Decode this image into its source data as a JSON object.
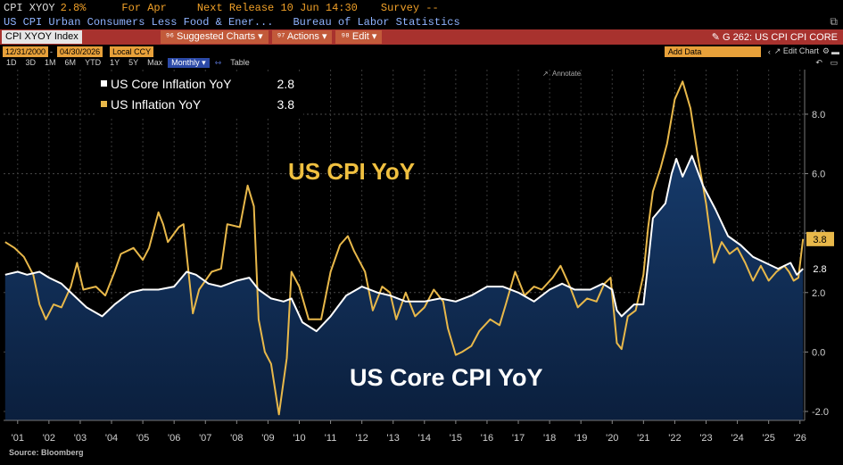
{
  "header": {
    "security": "CPI XYOY",
    "security_value": "2.8%",
    "for_label": "For Apr",
    "next_release": "Next Release 10 Jun 14:30",
    "survey": "Survey --",
    "description": "US CPI Urban Consumers Less Food & Ener...",
    "source_org": "Bureau of Labor Statistics"
  },
  "toolbar": {
    "command": "CPI XYOY Index",
    "menu_suggested": "Suggested Charts",
    "menu_actions": "Actions",
    "menu_edit": "Edit",
    "chart_id": "G 262: US CPI CPI CORE"
  },
  "controls": {
    "start_date": "12/31/2000",
    "end_date": "04/30/2026",
    "currency": "Local CCY",
    "periods": [
      "1D",
      "3D",
      "1M",
      "6M",
      "YTD",
      "1Y",
      "5Y",
      "Max"
    ],
    "frequency": "Monthly",
    "table": "Table",
    "add_data": "Add Data",
    "edit_chart": "Edit Chart",
    "annotate": "Annotate"
  },
  "source": "Source: Bloomberg",
  "chart_data": {
    "type": "area",
    "title": "US CPI YoY",
    "subtitle": "US Core CPI YoY",
    "x_domain": [
      2000.75,
      2026.35
    ],
    "ylim": [
      -2.3,
      9.5
    ],
    "y_ticks": [
      -2.0,
      0.0,
      2.0,
      4.0,
      6.0,
      8.0
    ],
    "x_ticks": [
      {
        "x": 2001.2,
        "label": "'01"
      },
      {
        "x": 2002.2,
        "label": "'02"
      },
      {
        "x": 2003.2,
        "label": "'03"
      },
      {
        "x": 2004.2,
        "label": "'04"
      },
      {
        "x": 2005.2,
        "label": "'05"
      },
      {
        "x": 2006.2,
        "label": "'06"
      },
      {
        "x": 2007.2,
        "label": "'07"
      },
      {
        "x": 2008.2,
        "label": "'08"
      },
      {
        "x": 2009.2,
        "label": "'09"
      },
      {
        "x": 2010.2,
        "label": "'10"
      },
      {
        "x": 2011.2,
        "label": "'11"
      },
      {
        "x": 2012.2,
        "label": "'12"
      },
      {
        "x": 2013.2,
        "label": "'13"
      },
      {
        "x": 2014.2,
        "label": "'14"
      },
      {
        "x": 2015.2,
        "label": "'15"
      },
      {
        "x": 2016.2,
        "label": "'16"
      },
      {
        "x": 2017.2,
        "label": "'17"
      },
      {
        "x": 2018.2,
        "label": "'18"
      },
      {
        "x": 2019.2,
        "label": "'19"
      },
      {
        "x": 2020.2,
        "label": "'20"
      },
      {
        "x": 2021.2,
        "label": "'21"
      },
      {
        "x": 2022.2,
        "label": "'22"
      },
      {
        "x": 2023.2,
        "label": "'23"
      },
      {
        "x": 2024.2,
        "label": "'24"
      },
      {
        "x": 2025.2,
        "label": "'25"
      },
      {
        "x": 2026.2,
        "label": "'26"
      }
    ],
    "grid": true,
    "legend_position": "top-left",
    "colors": {
      "core": "#ffffff",
      "headline": "#e8b84a",
      "fill": "#0e2748"
    },
    "series": [
      {
        "name": "US Core Inflation YoY",
        "last": "2.8",
        "points": [
          [
            2000.8,
            2.6
          ],
          [
            2001.2,
            2.7
          ],
          [
            2001.5,
            2.6
          ],
          [
            2001.9,
            2.7
          ],
          [
            2002.2,
            2.5
          ],
          [
            2002.6,
            2.3
          ],
          [
            2003.0,
            1.9
          ],
          [
            2003.4,
            1.5
          ],
          [
            2003.9,
            1.2
          ],
          [
            2004.3,
            1.6
          ],
          [
            2004.8,
            2.0
          ],
          [
            2005.2,
            2.1
          ],
          [
            2005.7,
            2.1
          ],
          [
            2006.2,
            2.2
          ],
          [
            2006.6,
            2.7
          ],
          [
            2006.9,
            2.6
          ],
          [
            2007.3,
            2.3
          ],
          [
            2007.7,
            2.2
          ],
          [
            2008.2,
            2.4
          ],
          [
            2008.6,
            2.5
          ],
          [
            2008.9,
            2.1
          ],
          [
            2009.3,
            1.8
          ],
          [
            2009.7,
            1.7
          ],
          [
            2009.95,
            1.8
          ],
          [
            2010.3,
            1.0
          ],
          [
            2010.75,
            0.7
          ],
          [
            2011.2,
            1.2
          ],
          [
            2011.7,
            1.9
          ],
          [
            2012.2,
            2.2
          ],
          [
            2012.7,
            2.0
          ],
          [
            2013.1,
            1.9
          ],
          [
            2013.6,
            1.7
          ],
          [
            2014.2,
            1.7
          ],
          [
            2014.7,
            1.8
          ],
          [
            2015.2,
            1.7
          ],
          [
            2015.7,
            1.9
          ],
          [
            2016.2,
            2.2
          ],
          [
            2016.7,
            2.2
          ],
          [
            2017.2,
            2.0
          ],
          [
            2017.7,
            1.7
          ],
          [
            2018.2,
            2.1
          ],
          [
            2018.6,
            2.3
          ],
          [
            2019.0,
            2.1
          ],
          [
            2019.5,
            2.1
          ],
          [
            2019.9,
            2.3
          ],
          [
            2020.2,
            2.1
          ],
          [
            2020.35,
            1.4
          ],
          [
            2020.5,
            1.2
          ],
          [
            2020.9,
            1.6
          ],
          [
            2021.2,
            1.6
          ],
          [
            2021.35,
            3.0
          ],
          [
            2021.5,
            4.5
          ],
          [
            2021.9,
            5.0
          ],
          [
            2022.1,
            6.0
          ],
          [
            2022.25,
            6.5
          ],
          [
            2022.45,
            5.9
          ],
          [
            2022.75,
            6.6
          ],
          [
            2023.1,
            5.6
          ],
          [
            2023.5,
            4.8
          ],
          [
            2023.9,
            3.9
          ],
          [
            2024.3,
            3.6
          ],
          [
            2024.7,
            3.2
          ],
          [
            2025.1,
            3.0
          ],
          [
            2025.5,
            2.8
          ],
          [
            2025.9,
            3.0
          ],
          [
            2026.1,
            2.6
          ],
          [
            2026.3,
            2.8
          ]
        ]
      },
      {
        "name": "US Inflation YoY",
        "last": "3.8",
        "points": [
          [
            2000.8,
            3.7
          ],
          [
            2001.1,
            3.5
          ],
          [
            2001.4,
            3.2
          ],
          [
            2001.7,
            2.6
          ],
          [
            2001.9,
            1.6
          ],
          [
            2002.1,
            1.1
          ],
          [
            2002.35,
            1.6
          ],
          [
            2002.6,
            1.5
          ],
          [
            2002.9,
            2.2
          ],
          [
            2003.1,
            3.0
          ],
          [
            2003.3,
            2.1
          ],
          [
            2003.7,
            2.2
          ],
          [
            2004.0,
            1.9
          ],
          [
            2004.3,
            2.7
          ],
          [
            2004.5,
            3.3
          ],
          [
            2004.9,
            3.5
          ],
          [
            2005.2,
            3.1
          ],
          [
            2005.4,
            3.5
          ],
          [
            2005.7,
            4.7
          ],
          [
            2005.85,
            4.3
          ],
          [
            2006.0,
            3.7
          ],
          [
            2006.35,
            4.2
          ],
          [
            2006.5,
            4.3
          ],
          [
            2006.8,
            1.3
          ],
          [
            2007.0,
            2.1
          ],
          [
            2007.4,
            2.7
          ],
          [
            2007.7,
            2.8
          ],
          [
            2007.9,
            4.3
          ],
          [
            2008.3,
            4.2
          ],
          [
            2008.55,
            5.6
          ],
          [
            2008.75,
            4.9
          ],
          [
            2008.9,
            1.1
          ],
          [
            2009.1,
            0.0
          ],
          [
            2009.3,
            -0.4
          ],
          [
            2009.55,
            -2.1
          ],
          [
            2009.8,
            -0.2
          ],
          [
            2009.95,
            2.7
          ],
          [
            2010.2,
            2.2
          ],
          [
            2010.5,
            1.1
          ],
          [
            2010.9,
            1.1
          ],
          [
            2011.2,
            2.7
          ],
          [
            2011.5,
            3.6
          ],
          [
            2011.75,
            3.9
          ],
          [
            2011.95,
            3.4
          ],
          [
            2012.3,
            2.7
          ],
          [
            2012.55,
            1.4
          ],
          [
            2012.85,
            2.2
          ],
          [
            2013.1,
            2.0
          ],
          [
            2013.3,
            1.1
          ],
          [
            2013.6,
            2.0
          ],
          [
            2013.9,
            1.2
          ],
          [
            2014.2,
            1.5
          ],
          [
            2014.5,
            2.1
          ],
          [
            2014.8,
            1.7
          ],
          [
            2014.95,
            0.8
          ],
          [
            2015.2,
            -0.1
          ],
          [
            2015.4,
            0.0
          ],
          [
            2015.7,
            0.2
          ],
          [
            2015.95,
            0.7
          ],
          [
            2016.3,
            1.1
          ],
          [
            2016.6,
            0.9
          ],
          [
            2016.8,
            1.6
          ],
          [
            2017.1,
            2.7
          ],
          [
            2017.4,
            1.9
          ],
          [
            2017.7,
            2.2
          ],
          [
            2017.95,
            2.1
          ],
          [
            2018.3,
            2.5
          ],
          [
            2018.55,
            2.9
          ],
          [
            2018.85,
            2.2
          ],
          [
            2019.1,
            1.5
          ],
          [
            2019.4,
            1.8
          ],
          [
            2019.7,
            1.7
          ],
          [
            2019.95,
            2.3
          ],
          [
            2020.15,
            2.5
          ],
          [
            2020.35,
            0.3
          ],
          [
            2020.5,
            0.1
          ],
          [
            2020.7,
            1.2
          ],
          [
            2020.95,
            1.4
          ],
          [
            2021.2,
            2.6
          ],
          [
            2021.35,
            4.2
          ],
          [
            2021.5,
            5.4
          ],
          [
            2021.75,
            6.2
          ],
          [
            2021.95,
            7.0
          ],
          [
            2022.2,
            8.5
          ],
          [
            2022.45,
            9.1
          ],
          [
            2022.7,
            8.2
          ],
          [
            2022.95,
            6.5
          ],
          [
            2023.2,
            5.0
          ],
          [
            2023.45,
            3.0
          ],
          [
            2023.7,
            3.7
          ],
          [
            2023.95,
            3.3
          ],
          [
            2024.2,
            3.5
          ],
          [
            2024.45,
            3.0
          ],
          [
            2024.7,
            2.4
          ],
          [
            2024.95,
            2.9
          ],
          [
            2025.2,
            2.4
          ],
          [
            2025.45,
            2.7
          ],
          [
            2025.7,
            2.9
          ],
          [
            2025.85,
            2.7
          ],
          [
            2026.0,
            2.4
          ],
          [
            2026.15,
            2.5
          ],
          [
            2026.3,
            3.8
          ]
        ]
      }
    ]
  }
}
